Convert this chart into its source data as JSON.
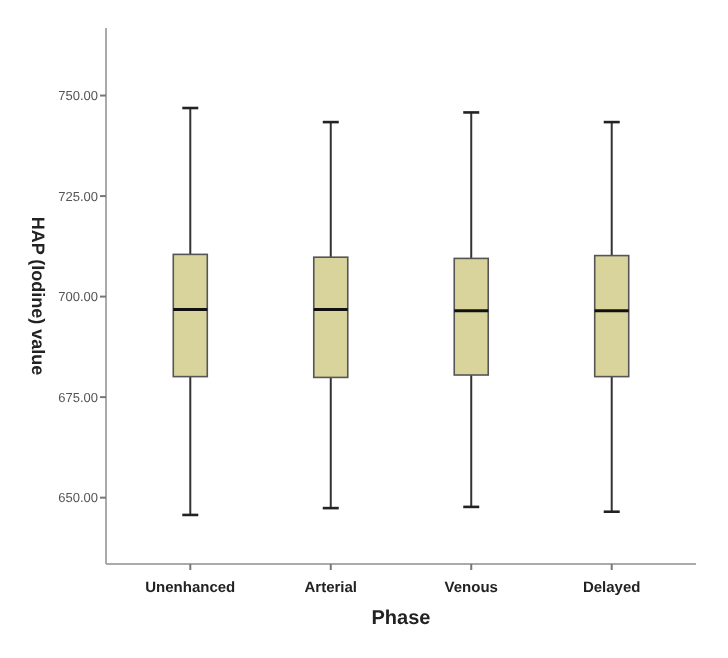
{
  "chart_data": {
    "type": "box",
    "xlabel": "Phase",
    "ylabel": "HAP (Iodine) value",
    "categories": [
      "Unenhanced",
      "Arterial",
      "Venous",
      "Delayed"
    ],
    "color": "#d8d49c",
    "boxes": [
      {
        "low": 645.7,
        "q1": 680.1,
        "median": 696.8,
        "q3": 710.5,
        "high": 746.9
      },
      {
        "low": 647.4,
        "q1": 679.9,
        "median": 696.8,
        "q3": 709.8,
        "high": 743.4
      },
      {
        "low": 647.7,
        "q1": 680.5,
        "median": 696.5,
        "q3": 709.5,
        "high": 745.8
      },
      {
        "low": 646.5,
        "q1": 680.1,
        "median": 696.5,
        "q3": 710.2,
        "high": 743.4
      }
    ],
    "ylim": [
      633.5,
      766.8
    ],
    "yticks": [
      {
        "value": 650,
        "label": "650.00"
      },
      {
        "value": 675,
        "label": "675.00"
      },
      {
        "value": 700,
        "label": "700.00"
      },
      {
        "value": 725,
        "label": "725.00"
      },
      {
        "value": 750,
        "label": "750.00"
      }
    ],
    "grid": false
  }
}
